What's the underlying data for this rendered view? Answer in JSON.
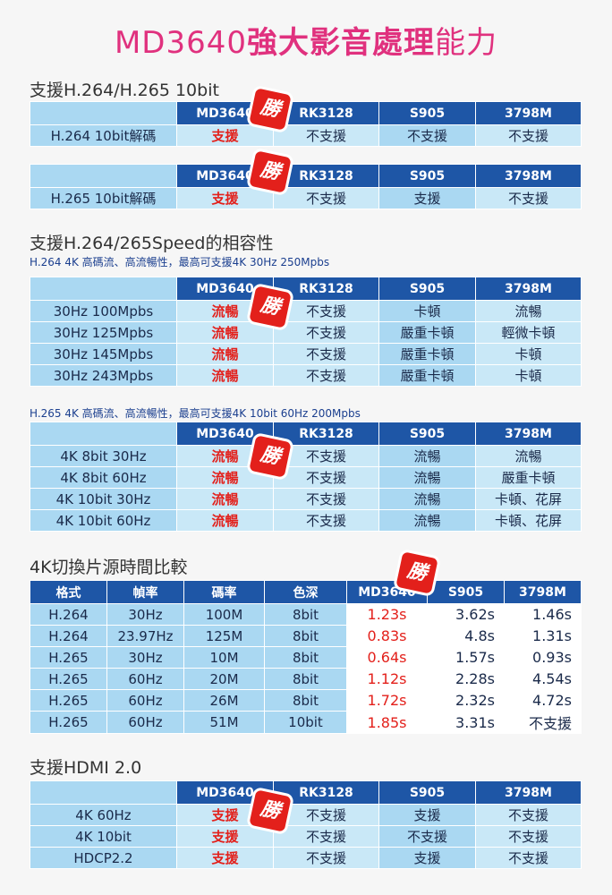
{
  "title": {
    "part1": "MD3640",
    "part2": "強大影音處理",
    "part3": "能力"
  },
  "sections": {
    "s1": "支援H.264/H.265 10bit",
    "s2": "支援H.264/265Speed的相容性",
    "s2_sub1": "H.264 4K  高碼流、高流暢性，最高可支援4K 30Hz 250Mpbs",
    "s2_sub2": "H.265 4K 高碼流、高流暢性，最高可支援4K 10bit 60Hz 200Mpbs",
    "s3": "4K切換片源時間比較",
    "s4": "支援HDMI 2.0"
  },
  "badge": "勝",
  "devices": [
    "MD3640",
    "RK3128",
    "S905",
    "3798M"
  ],
  "t1": {
    "label": "H.264 10bit解碼",
    "values": [
      "支援",
      "不支援",
      "不支援",
      "不支援"
    ]
  },
  "t2": {
    "label": "H.265 10bit解碼",
    "values": [
      "支援",
      "不支援",
      "支援",
      "不支援"
    ]
  },
  "t3": [
    {
      "label": "30Hz 100Mpbs",
      "values": [
        "流暢",
        "不支援",
        "卡頓",
        "流暢"
      ]
    },
    {
      "label": "30Hz 125Mpbs",
      "values": [
        "流暢",
        "不支援",
        "嚴重卡頓",
        "輕微卡頓"
      ]
    },
    {
      "label": "30Hz 145Mpbs",
      "values": [
        "流暢",
        "不支援",
        "嚴重卡頓",
        "卡頓"
      ]
    },
    {
      "label": "30Hz 243Mpbs",
      "values": [
        "流暢",
        "不支援",
        "嚴重卡頓",
        "卡頓"
      ]
    }
  ],
  "t4": [
    {
      "label": "4K 8bit 30Hz",
      "values": [
        "流暢",
        "不支援",
        "流暢",
        "流暢"
      ]
    },
    {
      "label": "4K 8bit 60Hz",
      "values": [
        "流暢",
        "不支援",
        "流暢",
        "嚴重卡頓"
      ]
    },
    {
      "label": "4K 10bit 30Hz",
      "values": [
        "流暢",
        "不支援",
        "流暢",
        "卡頓、花屏"
      ]
    },
    {
      "label": "4K 10bit 60Hz",
      "values": [
        "流暢",
        "不支援",
        "流暢",
        "卡頓、花屏"
      ]
    }
  ],
  "t5": {
    "headers": [
      "格式",
      "幀率",
      "碼率",
      "色深",
      "MD3640",
      "S905",
      "3798M"
    ],
    "rows": [
      [
        "H.264",
        "30Hz",
        "100M",
        "8bit",
        "1.23s",
        "3.62s",
        "1.46s"
      ],
      [
        "H.264",
        "23.97Hz",
        "125M",
        "8bit",
        "0.83s",
        "4.8s",
        "1.31s"
      ],
      [
        "H.265",
        "30Hz",
        "10M",
        "8bit",
        "0.64s",
        "1.57s",
        "0.93s"
      ],
      [
        "H.265",
        "60Hz",
        "20M",
        "8bit",
        "1.12s",
        "2.28s",
        "4.54s"
      ],
      [
        "H.265",
        "60Hz",
        "26M",
        "8bit",
        "1.72s",
        "2.32s",
        "4.72s"
      ],
      [
        "H.265",
        "60Hz",
        "51M",
        "10bit",
        "1.85s",
        "3.31s",
        "不支援"
      ]
    ]
  },
  "t6": [
    {
      "label": "4K 60Hz",
      "values": [
        "支援",
        "不支援",
        "支援",
        "不支援"
      ]
    },
    {
      "label": "4K 10bit",
      "values": [
        "支援",
        "不支援",
        "不支援",
        "不支援"
      ]
    },
    {
      "label": "HDCP2.2",
      "values": [
        "支援",
        "不支援",
        "支援",
        "不支援"
      ]
    }
  ],
  "colors": {
    "accent": "#e0317e",
    "header": "#1e56a6",
    "red": "#e3201b",
    "light": "#aad8f2"
  }
}
